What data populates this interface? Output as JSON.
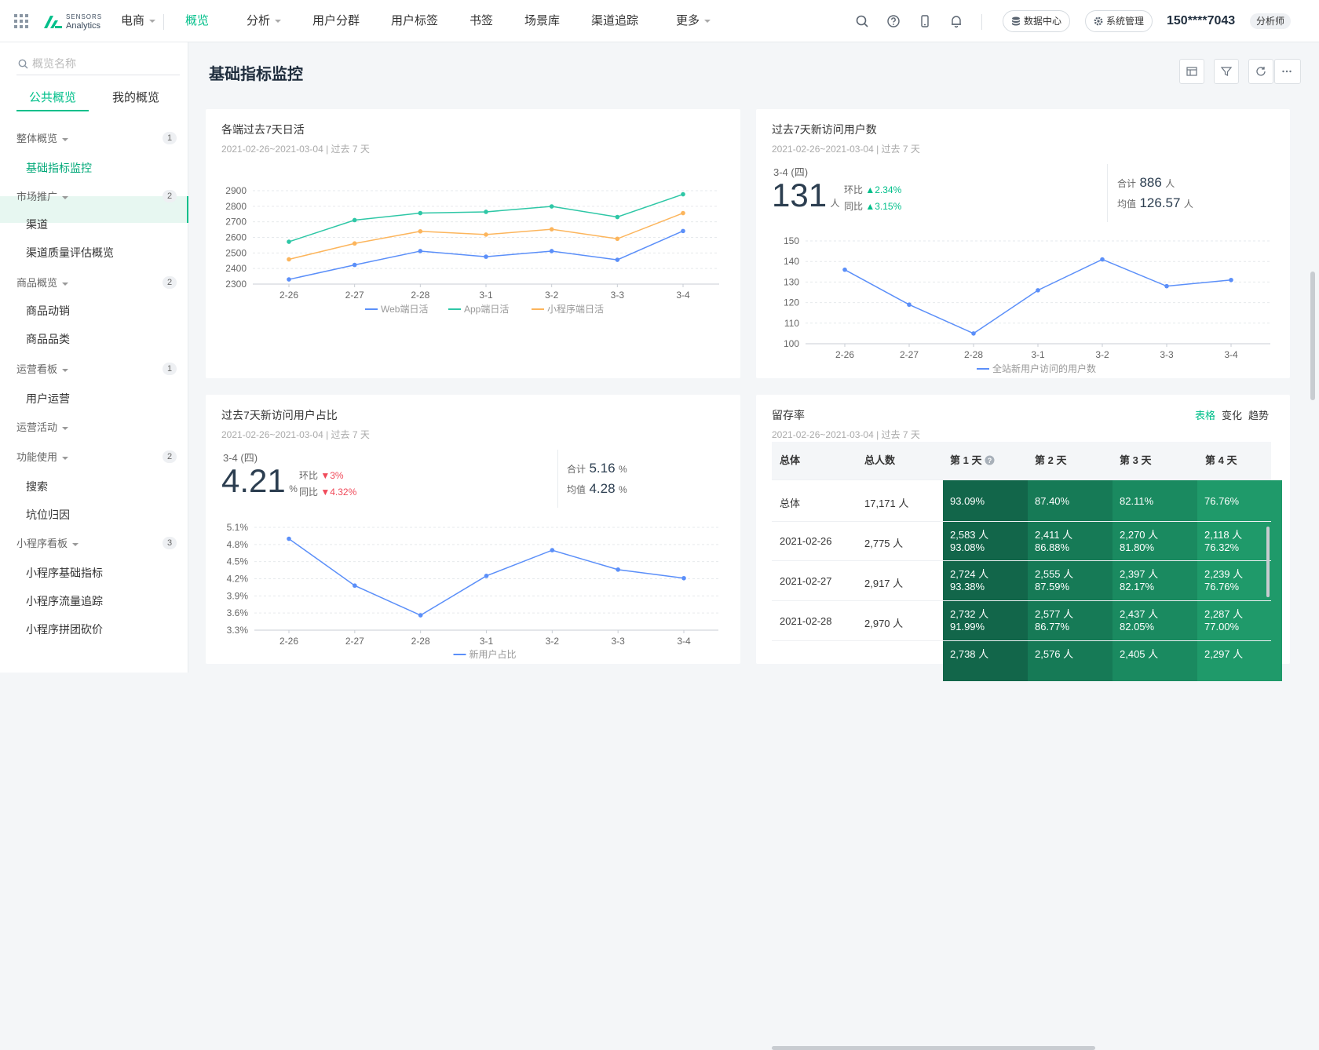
{
  "brand": {
    "line1": "SENSORS",
    "line2": "Analytics"
  },
  "topnav": {
    "project": "电商",
    "items": [
      "概览",
      "分析",
      "用户分群",
      "用户标签",
      "书签",
      "场景库",
      "渠道追踪",
      "更多"
    ],
    "data_center": "数据中心",
    "system_admin": "系统管理",
    "user": "150****7043",
    "role": "分析师"
  },
  "sidebar": {
    "search_placeholder": "概览名称",
    "tabs": [
      "公共概览",
      "我的概览"
    ],
    "groups": [
      {
        "label": "整体概览",
        "count": "1",
        "items": [
          "基础指标监控"
        ]
      },
      {
        "label": "市场推广",
        "count": "2",
        "items": [
          "渠道",
          "渠道质量评估概览"
        ]
      },
      {
        "label": "商品概览",
        "count": "2",
        "items": [
          "商品动销",
          "商品品类"
        ]
      },
      {
        "label": "运营看板",
        "count": "1",
        "items": [
          "用户运营"
        ]
      },
      {
        "label": "运营活动",
        "count": "",
        "items": []
      },
      {
        "label": "功能使用",
        "count": "2",
        "items": [
          "搜索",
          "坑位归因"
        ]
      },
      {
        "label": "小程序看板",
        "count": "3",
        "items": [
          "小程序基础指标",
          "小程序流量追踪",
          "小程序拼团砍价"
        ]
      }
    ]
  },
  "page": {
    "title": "基础指标监控"
  },
  "cards": {
    "dau": {
      "title": "各端过去7天日活",
      "range": "2021-02-26~2021-03-04 | 过去 7 天"
    },
    "newusers": {
      "title": "过去7天新访问用户数",
      "range": "2021-02-26~2021-03-04 | 过去 7 天",
      "date": "3-4 (四)",
      "value": "131",
      "unit": "人",
      "hb_label": "环比",
      "hb_value": "▲2.34%",
      "tb_label": "同比",
      "tb_value": "▲3.15%",
      "total_label": "合计",
      "total_value": "886",
      "total_unit": "人",
      "avg_label": "均值",
      "avg_value": "126.57",
      "avg_unit": "人"
    },
    "ratio": {
      "title": "过去7天新访问用户占比",
      "range": "2021-02-26~2021-03-04 | 过去 7 天",
      "date": "3-4 (四)",
      "value": "4.21",
      "unit": "%",
      "hb_label": "环比",
      "hb_value": "▼3%",
      "tb_label": "同比",
      "tb_value": "▼4.32%",
      "total_label": "合计",
      "total_value": "5.16",
      "total_unit": "%",
      "avg_label": "均值",
      "avg_value": "4.28",
      "avg_unit": "%"
    },
    "retention": {
      "title": "留存率",
      "range": "2021-02-26~2021-03-04 | 过去 7 天",
      "tabs": [
        "表格",
        "变化",
        "趋势"
      ],
      "headers": [
        "总体",
        "总人数",
        "第 1 天",
        "第 2 天",
        "第 3 天",
        "第 4 天"
      ],
      "rows": [
        {
          "label": "总体",
          "total": "17,171 人",
          "cells": [
            [
              "",
              "93.09%"
            ],
            [
              "",
              "87.40%"
            ],
            [
              "",
              "82.11%"
            ],
            [
              "",
              "76.76%"
            ]
          ]
        },
        {
          "label": "2021-02-26",
          "total": "2,775 人",
          "cells": [
            [
              "2,583 人",
              "93.08%"
            ],
            [
              "2,411 人",
              "86.88%"
            ],
            [
              "2,270 人",
              "81.80%"
            ],
            [
              "2,118 人",
              "76.32%"
            ]
          ]
        },
        {
          "label": "2021-02-27",
          "total": "2,917 人",
          "cells": [
            [
              "2,724 人",
              "93.38%"
            ],
            [
              "2,555 人",
              "87.59%"
            ],
            [
              "2,397 人",
              "82.17%"
            ],
            [
              "2,239 人",
              "76.76%"
            ]
          ]
        },
        {
          "label": "2021-02-28",
          "total": "2,970 人",
          "cells": [
            [
              "2,732 人",
              "91.99%"
            ],
            [
              "2,577 人",
              "86.77%"
            ],
            [
              "2,437 人",
              "82.05%"
            ],
            [
              "2,287 人",
              "77.00%"
            ]
          ]
        },
        {
          "label": "",
          "total": "",
          "cells": [
            [
              "2,738 人",
              ""
            ],
            [
              "2,576 人",
              ""
            ],
            [
              "2,405 人",
              ""
            ],
            [
              "2,297 人",
              ""
            ]
          ]
        }
      ],
      "colors": [
        "#12664a",
        "#167a56",
        "#1a8a60",
        "#1f9a6a"
      ]
    }
  },
  "chart_data": [
    {
      "type": "line",
      "categories": [
        "2-26",
        "2-27",
        "2-28",
        "3-1",
        "3-2",
        "3-3",
        "3-4"
      ],
      "series": [
        {
          "name": "Web端日活",
          "color": "#5b8ff9",
          "values": [
            2330,
            2423,
            2512,
            2476,
            2512,
            2456,
            2641
          ]
        },
        {
          "name": "App端日活",
          "color": "#2ec7a6",
          "values": [
            2572,
            2711,
            2756,
            2764,
            2799,
            2731,
            2877
          ]
        },
        {
          "name": "小程序端日活",
          "color": "#fcb55c",
          "values": [
            2459,
            2561,
            2639,
            2618,
            2652,
            2591,
            2756
          ]
        }
      ],
      "yticks": [
        2300,
        2400,
        2500,
        2600,
        2700,
        2800,
        2900
      ],
      "ylim": [
        2300,
        2900
      ]
    },
    {
      "type": "line",
      "categories": [
        "2-26",
        "2-27",
        "2-28",
        "3-1",
        "3-2",
        "3-3",
        "3-4"
      ],
      "series": [
        {
          "name": "全站新用户访问的用户数",
          "color": "#5b8ff9",
          "values": [
            136,
            119,
            105,
            126,
            141,
            128,
            131
          ]
        }
      ],
      "yticks": [
        100,
        110,
        120,
        130,
        140,
        150
      ],
      "ylim": [
        100,
        150
      ]
    },
    {
      "type": "line",
      "categories": [
        "2-26",
        "2-27",
        "2-28",
        "3-1",
        "3-2",
        "3-3",
        "3-4"
      ],
      "series": [
        {
          "name": "新用户占比",
          "color": "#5b8ff9",
          "values": [
            4.9,
            4.08,
            3.56,
            4.25,
            4.7,
            4.36,
            4.21
          ]
        }
      ],
      "yticks": [
        "3.3%",
        "3.6%",
        "3.9%",
        "4.2%",
        "4.5%",
        "4.8%",
        "5.1%"
      ],
      "ylim": [
        3.3,
        5.1
      ]
    }
  ]
}
